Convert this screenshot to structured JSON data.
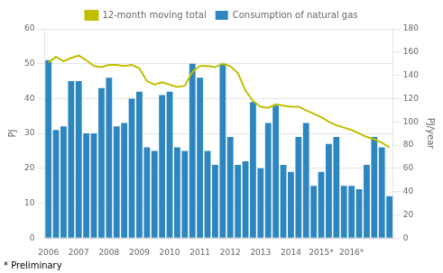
{
  "chart_data": {
    "type": "bar",
    "categories": [
      "2006",
      null,
      null,
      null,
      "2007",
      null,
      null,
      null,
      "2008",
      null,
      null,
      null,
      "2009",
      null,
      null,
      null,
      "2010",
      null,
      null,
      null,
      "2011",
      null,
      null,
      null,
      "2012",
      null,
      null,
      null,
      "2013",
      null,
      null,
      null,
      "2014",
      null,
      null,
      null,
      "2015*",
      null,
      null,
      null,
      "2016*",
      null,
      null,
      null,
      null,
      null
    ],
    "series": [
      {
        "name": "Consumption of natural gas",
        "type": "bar",
        "color": "#2E86C1",
        "values": [
          51,
          31,
          32,
          45,
          45,
          30,
          30,
          43,
          46,
          32,
          33,
          40,
          42,
          26,
          25,
          41,
          42,
          26,
          25,
          50,
          46,
          25,
          21,
          50,
          29,
          21,
          22,
          39,
          20,
          33,
          38,
          21,
          19,
          29,
          33,
          15,
          19,
          27,
          29,
          15,
          15,
          14,
          21,
          29,
          26,
          12
        ]
      },
      {
        "name": "12-month moving total",
        "type": "line",
        "color": "#BFBF00",
        "axis": "y2",
        "values": [
          151,
          156,
          152,
          155,
          157,
          153,
          148,
          147,
          149,
          149,
          148,
          149,
          146,
          135,
          132,
          134,
          132,
          130,
          131,
          143,
          148,
          148,
          147,
          150,
          148,
          142,
          127,
          118,
          113,
          112,
          115,
          114,
          113,
          113,
          110,
          107,
          104,
          100,
          97,
          95,
          93,
          90,
          87,
          85,
          82,
          78
        ]
      }
    ],
    "ylim": [
      0,
      60
    ],
    "yticks": [
      0,
      10,
      20,
      30,
      40,
      50,
      60
    ],
    "y2lim": [
      0,
      180
    ],
    "y2ticks": [
      0,
      20,
      40,
      60,
      80,
      100,
      120,
      140,
      160,
      180
    ],
    "y_label": "PJ",
    "y2_label": "PJ/year",
    "annotations": [
      "* Preliminary"
    ],
    "grid": true,
    "legend": "top"
  }
}
